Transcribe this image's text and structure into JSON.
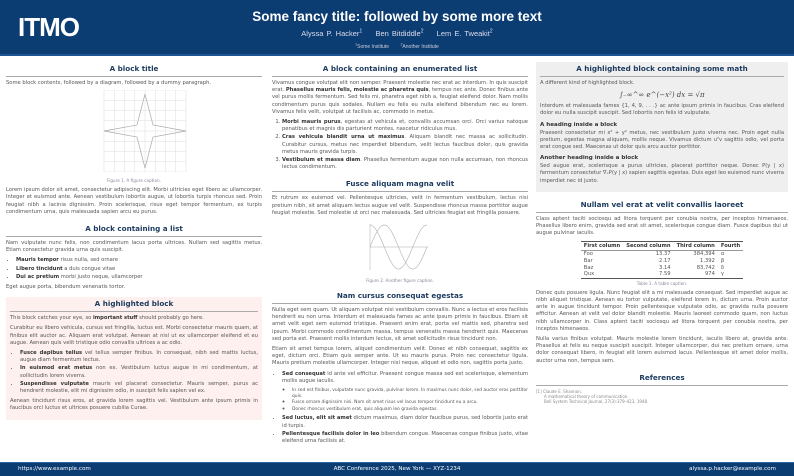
{
  "header": {
    "logo": "ITMO",
    "title": "Some fancy title: followed by some more text",
    "authors": [
      "Alyssa P. Hacker",
      "Ben Bitdiddle",
      "Lem E. Tweakit"
    ],
    "author_marks": [
      "1",
      "2",
      "2"
    ],
    "institutions": [
      "Some Institute",
      "Another Institute"
    ],
    "institution_marks": [
      "1",
      "2"
    ],
    "colors": {
      "primary": "#0b3c72",
      "highlight_bg": "#fdf0ee",
      "math_bg": "#efefef"
    }
  },
  "col1": {
    "b1": {
      "title": "A block title",
      "intro": "Some block contents, followed by a diagram, followed by a dummy paragraph.",
      "caption": "Figure 1. A figure caption.",
      "para": "Lorem ipsum dolor sit amet, consectetur adipiscing elit. Morbi ultricies eget libero ac ullamcorper. Integer et euismod ante. Aenean vestibulum lobortis augue, ut lobortis turpis rhoncus sed. Proin feugiat nibh a lacinia dignissim. Proin scelerisque, risus eget tempor fermentum, ex turpis condimentum urna, quis malesuada sapien arcu eu purus."
    },
    "b2": {
      "title": "A block containing a list",
      "intro": "Nam vulputate nunc felis, non condimentum lacus porta ultrices. Nullam sed sagittis metus. Etiam consectetur gravida urna quis suscipit.",
      "items": [
        {
          "b": "Mauris tempor",
          "t": " risus nulla, sed ornare"
        },
        {
          "b": "Libero tincidunt",
          "t": " a duis congue vitae"
        },
        {
          "b": "Dui ac pretium",
          "t": " morbi justo neque, ullamcorper"
        }
      ],
      "outro": "Eget augue porta, bibendum venenatis tortor."
    },
    "b3": {
      "title": "A highlighted block",
      "p1a": "This block catches your eye, so ",
      "p1b": "important stuff",
      "p1c": " should probably go here.",
      "p2": "Curabitur eu libero vehicula, cursus est fringilla, luctus est. Morbi consectetur mauris quam, at finibus elit auctor ac. Aliquam erat volutpat. Aenean at nisl ut ex ullamcorper eleifend et eu augue. Aenean quis velit tristique odio convallis ultrices a ac odio.",
      "items": [
        {
          "b": "Fusce dapibus tellus",
          "t": " vel tellus semper finibus. In consequat, nibh sed mattis luctus, augue diam fermentum lectus."
        },
        {
          "b": "In euismod erat metus",
          "t": " non ex. Vestibulum luctus augue in mi condimentum, at sollicitudin lorem viverra."
        },
        {
          "b": "Suspendisse vulputate",
          "t": " mauris vel placerat consectetur. Mauris semper, purus ac hendrerit molestie, elit mi dignissim odio, in suscipit felis sapien vel ex."
        }
      ],
      "p3": "Aenean tincidunt risus eros, at gravida lorem sagittis vel. Vestibulum ante ipsum primis in faucibus orci luctus et ultrices posuere cubilia Curae."
    }
  },
  "col2": {
    "b1": {
      "title": "A block containing an enumerated list",
      "p1a": "Vivamus congue volutpat elit non semper. Praesent molestie nec erat ac interdum. In quis suscipit erat. ",
      "p1b": "Phasellus mauris felis, molestie ac pharetra quis",
      "p1c": ", tempus nec ante. Donec finibus ante vel purus mollis fermentum. Sed felis mi, pharetra eget nibh a, feugiat eleifend dolor. Nam mollis condimentum purus quis sodales. Nullam eu felis eu nulla eleifend bibendum nec eu lorem. Vivamus felis velit, volutpat ut facilisis ac, commodo in metus.",
      "items": [
        {
          "b": "Morbi mauris purus",
          "t": ", egestas at vehicula et, convallis accumsan orci. Orci varius natoque penatibus et magnis dis parturient montes, nascetur ridiculus mus."
        },
        {
          "b": "Cras vehicula blandit urna ut maximus",
          "t": ". Aliquam blandit nec massa ac sollicitudin. Curabitur cursus, metus nec imperdiet bibendum, velit lectus faucibus dolor, quis gravida metus mauris gravida turpis."
        },
        {
          "b": "Vestibulum et massa diam",
          "t": ". Phasellus fermentum augue non nulla accumsan, non rhoncus lectus condimentum."
        }
      ]
    },
    "b2": {
      "title": "Fusce aliquam magna velit",
      "para": "Et rutrum ex euismod vel. Pellentesque ultricies, velit in fermentum vestibulum, lectus nisi pretium nibh, sit amet aliquam lectus augue vel velit. Suspendisse rhoncus massa porttitor augue feugiat molestie. Sed molestie ut orci nec malesuada. Sed ultricies feugiat est fringilla posuere.",
      "caption": "Figure 2. Another figure caption."
    },
    "b3": {
      "title": "Nam cursus consequat egestas",
      "p1": "Nulla eget sem quam. Ut aliquam volutpat nisi vestibulum convallis. Nunc a lectus et eros facilisis hendrerit eu non urna. Interdum et malesuada fames ac ante ipsum primis in faucibus. Etiam sit amet velit eget sem euismod tristique. Praesent enim erat, porta vel mattis sed, pharetra sed ipsum. Morbi commodo condimentum massa, tempus venenatis massa hendrerit quis. Maecenas sed porta est. Praesent mollis interdum lectus, sit amet sollicitudin risus tincidunt non.",
      "p2": "Etiam sit amet tempus lorem, aliquet condimentum velit. Donec et nibh consequat, sagittis ex eget, dictum orci. Etiam quis semper ante. Ut eu mauris purus. Proin nec consectetur ligula. Mauris pretium molestie ullamcorper. Integer nisi neque, aliquet et odio non, sagittis porta justo.",
      "items": [
        {
          "b": "Sed consequat",
          "t": " id ante vel efficitur. Praesent congue massa sed est scelerisque, elementum mollis augue iaculis."
        },
        {
          "b": "Sed luctus, elit sit amet",
          "t": " dictum maximus, diam dolor faucibus purus, sed lobortis justo erat id turpis."
        },
        {
          "b": "Pellentesque facilisis dolor in leo",
          "t": " bibendum congue. Maecenas congue finibus justo, vitae eleifend urna facilisis at."
        }
      ],
      "subitems": [
        "In sed est finibus, vulputate nunc gravida, pulvinar lorem. In maximus nunc dolor, sed auctor eros porttitor quis.",
        "Fusce ornare dignissim nisi. Nam sit amet risus vel lacus tempor tincidunt eu a arcu.",
        "Donec rhoncus vestibulum erat, quis aliquam leo gravida egestas."
      ]
    }
  },
  "col3": {
    "b1": {
      "title": "A highlighted block containing some math",
      "intro": "A different kind of highlighted block.",
      "equation": "∫₋∞^∞ e^(−x²) dx = √π",
      "p1": "Interdum et malesuada fames {1, 4, 9, . . .} ac ante ipsum primis in faucibus. Cras eleifend dolor eu nulla suscipit suscipit. Sed lobortis non felis id vulputate.",
      "h1": "A heading inside a block",
      "p2": "Praesent consectetur mi x² + y² metus, nec vestibulum justo viverra nec. Proin eget nulla pretium, egestas magna aliquam, mollis neque. Vivamus dictum uᵀv sagittis odio, vel porta erat congue sed. Maecenas ut dolor quis arcu auctor porttitor.",
      "h2": "Another heading inside a block",
      "p3": "Sed augue erat, scelerisque a purus ultricies, placerat porttitor neque. Donec P(y | x) fermentum consectetur ∇ₓP(y | x) sapien sagittis egestas. Duis eget leo euismod nunc viverra imperdiet nec id justo."
    },
    "b2": {
      "title": "Nullam vel erat at velit convallis laoreet",
      "p1": "Class aptent taciti sociosqu ad litora torquent per conubia nostra, per inceptos himenaeos. Phasellus libero enim, gravida sed erat sit amet, scelerisque congue diam. Fusce dapibus dui ut augue pulvinar iaculis.",
      "table": {
        "headers": [
          "First column",
          "Second column",
          "Third column",
          "Fourth"
        ],
        "rows": [
          [
            "Foo",
            "13.37",
            "384,394",
            "α"
          ],
          [
            "Bar",
            "2.17",
            "1,392",
            "β"
          ],
          [
            "Baz",
            "3.14",
            "83,742",
            "δ"
          ],
          [
            "Qux",
            "7.59",
            "974",
            "γ"
          ]
        ]
      },
      "caption": "Table 1. A table caption.",
      "p2": "Donec quis posuere ligula. Nunc feugiat elit a mi malesuada consequat. Sed imperdiet augue ac nibh aliquet tristique. Aenean eu tortor vulputate, eleifend lorem in, dictum urna. Proin auctor ante in augue tincidunt tempor. Proin pellentesque vulputate odio, ac gravida nulla posuere efficitur. Aenean at velit vel dolor blandit molestie. Mauris laoreet commodo quam, non luctus nibh ullamcorper in. Class aptent taciti sociosqu ad litora torquent per conubia nostra, per inceptos himenaeos.",
      "p3": "Nulla varius finibus volutpat. Mauris molestie lorem tincidunt, iaculis libero at, gravida ante. Phasellus at felis eu neque suscipit suscipit. Integer ullamcorper, dui nec pretium ornare, urna dolor consequat libero, in feugiat elit lorem euismod lacus. Pellentesque sit amet dolor mollis, auctor urna non, tempus sem."
    },
    "b3": {
      "title": "References",
      "refs": [
        "[1] Claude E. Shannon.",
        "A mathematical theory of communication.",
        "Bell System Technical Journal, 27(3):379–423, 1948."
      ]
    }
  },
  "footer": {
    "left": "https://www.example.com",
    "center": "ABC Conference 2025, New York — XYZ-1234",
    "right": "alyssa.p.hacker@example.com"
  }
}
